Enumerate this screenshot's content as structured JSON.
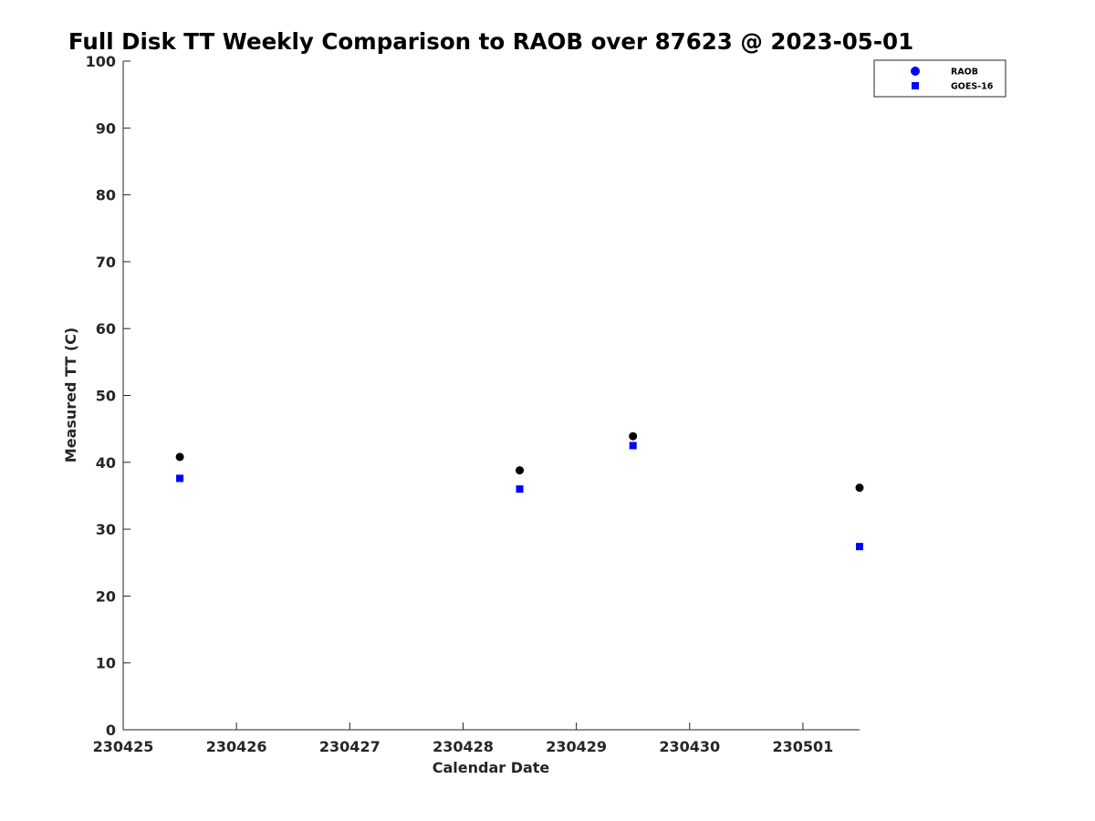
{
  "chart_data": {
    "type": "scatter",
    "title": "Full Disk TT Weekly Comparison to RAOB over 87623 @ 2023-05-01",
    "xlabel": "Calendar Date",
    "ylabel": "Measured TT (C)",
    "xlim": [
      "230425",
      "230501 12:00"
    ],
    "ylim": [
      0,
      100
    ],
    "x_ticks": [
      "230425",
      "230426",
      "230427",
      "230428",
      "230429",
      "230430",
      "230501"
    ],
    "y_ticks": [
      0,
      10,
      20,
      30,
      40,
      50,
      60,
      70,
      80,
      90,
      100
    ],
    "grid": false,
    "legend_position": "top-right",
    "series": [
      {
        "name": "RAOB",
        "marker": "circle",
        "legend_color": "#0000ff",
        "point_color": "#000000",
        "points": [
          {
            "x": "230425 12:00",
            "y": 40.8
          },
          {
            "x": "230428 12:00",
            "y": 38.8
          },
          {
            "x": "230429 12:00",
            "y": 43.9
          },
          {
            "x": "230501 12:00",
            "y": 36.2
          }
        ]
      },
      {
        "name": "GOES-16",
        "marker": "square",
        "legend_color": "#0000ff",
        "point_color": "#0000ff",
        "points": [
          {
            "x": "230425 12:00",
            "y": 37.6
          },
          {
            "x": "230428 12:00",
            "y": 36.0
          },
          {
            "x": "230429 12:00",
            "y": 42.5
          },
          {
            "x": "230501 12:00",
            "y": 27.4
          }
        ]
      }
    ]
  }
}
